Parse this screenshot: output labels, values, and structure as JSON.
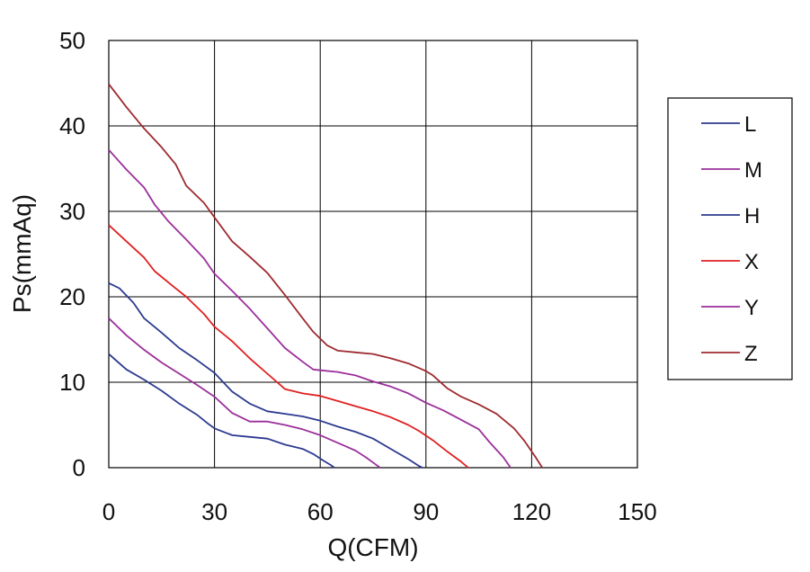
{
  "chart_data": {
    "type": "line",
    "title": "",
    "xlabel": "Q(CFM)",
    "ylabel": "Ps(mmAq)",
    "xlim": [
      0,
      150
    ],
    "ylim": [
      0,
      50
    ],
    "x_ticks": [
      0,
      30,
      60,
      90,
      120,
      150
    ],
    "y_ticks": [
      0,
      10,
      20,
      30,
      40,
      50
    ],
    "grid": true,
    "legend_position": "right",
    "series": [
      {
        "name": "L",
        "color": "#2b3a8f",
        "points": [
          [
            0,
            13.3
          ],
          [
            5,
            11.5
          ],
          [
            10,
            10.3
          ],
          [
            15,
            9
          ],
          [
            20,
            7.5
          ],
          [
            25,
            6.2
          ],
          [
            28,
            5.2
          ],
          [
            30,
            4.6
          ],
          [
            35,
            3.8
          ],
          [
            40,
            3.6
          ],
          [
            45,
            3.4
          ],
          [
            50,
            2.7
          ],
          [
            55,
            2.2
          ],
          [
            58,
            1.6
          ],
          [
            61,
            0.8
          ],
          [
            63,
            0.3
          ],
          [
            64,
            0
          ]
        ]
      },
      {
        "name": "M",
        "color": "#9b2f9b",
        "points": [
          [
            0,
            17.5
          ],
          [
            5,
            15.5
          ],
          [
            10,
            13.8
          ],
          [
            15,
            12.3
          ],
          [
            20,
            11
          ],
          [
            25,
            9.7
          ],
          [
            30,
            8.3
          ],
          [
            35,
            6.4
          ],
          [
            40,
            5.4
          ],
          [
            45,
            5.4
          ],
          [
            50,
            5
          ],
          [
            55,
            4.5
          ],
          [
            60,
            3.8
          ],
          [
            65,
            2.9
          ],
          [
            70,
            2
          ],
          [
            73,
            1.2
          ],
          [
            75,
            0.6
          ],
          [
            77,
            0
          ]
        ]
      },
      {
        "name": "H",
        "color": "#2b3a8f",
        "points": [
          [
            0,
            21.6
          ],
          [
            3,
            21
          ],
          [
            7,
            19.3
          ],
          [
            10,
            17.5
          ],
          [
            15,
            15.8
          ],
          [
            20,
            14
          ],
          [
            25,
            12.6
          ],
          [
            30,
            11.1
          ],
          [
            35,
            8.9
          ],
          [
            40,
            7.5
          ],
          [
            45,
            6.6
          ],
          [
            50,
            6.3
          ],
          [
            55,
            6
          ],
          [
            60,
            5.5
          ],
          [
            65,
            4.8
          ],
          [
            70,
            4.2
          ],
          [
            75,
            3.4
          ],
          [
            80,
            2.2
          ],
          [
            85,
            1
          ],
          [
            88,
            0.2
          ],
          [
            89,
            0
          ]
        ]
      },
      {
        "name": "X",
        "color": "#e02020",
        "points": [
          [
            0,
            28.4
          ],
          [
            5,
            26.5
          ],
          [
            10,
            24.6
          ],
          [
            13,
            23
          ],
          [
            18,
            21.3
          ],
          [
            22,
            20
          ],
          [
            27,
            18
          ],
          [
            30,
            16.5
          ],
          [
            35,
            14.8
          ],
          [
            40,
            12.8
          ],
          [
            45,
            11
          ],
          [
            50,
            9.2
          ],
          [
            55,
            8.7
          ],
          [
            60,
            8.4
          ],
          [
            65,
            7.8
          ],
          [
            70,
            7.2
          ],
          [
            75,
            6.6
          ],
          [
            80,
            5.9
          ],
          [
            85,
            5
          ],
          [
            88,
            4.3
          ],
          [
            92,
            3.2
          ],
          [
            96,
            1.9
          ],
          [
            100,
            0.7
          ],
          [
            102,
            0
          ]
        ]
      },
      {
        "name": "Y",
        "color": "#9b2f9b",
        "points": [
          [
            0,
            37.2
          ],
          [
            5,
            34.9
          ],
          [
            10,
            32.8
          ],
          [
            13,
            30.8
          ],
          [
            17,
            28.8
          ],
          [
            22,
            26.7
          ],
          [
            27,
            24.5
          ],
          [
            30,
            22.7
          ],
          [
            35,
            20.7
          ],
          [
            40,
            18.6
          ],
          [
            45,
            16.3
          ],
          [
            50,
            14
          ],
          [
            55,
            12.4
          ],
          [
            58,
            11.5
          ],
          [
            60,
            11.4
          ],
          [
            65,
            11.2
          ],
          [
            70,
            10.8
          ],
          [
            75,
            10.1
          ],
          [
            80,
            9.5
          ],
          [
            85,
            8.7
          ],
          [
            90,
            7.6
          ],
          [
            95,
            6.7
          ],
          [
            100,
            5.6
          ],
          [
            105,
            4.5
          ],
          [
            108,
            3
          ],
          [
            112,
            1.2
          ],
          [
            114,
            0
          ]
        ]
      },
      {
        "name": "Z",
        "color": "#9e2a2f",
        "points": [
          [
            0,
            44.9
          ],
          [
            5,
            42.2
          ],
          [
            10,
            39.7
          ],
          [
            15,
            37.5
          ],
          [
            19,
            35.5
          ],
          [
            22,
            33
          ],
          [
            27,
            31
          ],
          [
            30,
            29.3
          ],
          [
            35,
            26.5
          ],
          [
            40,
            24.7
          ],
          [
            45,
            22.8
          ],
          [
            50,
            20.2
          ],
          [
            55,
            17.5
          ],
          [
            58,
            15.9
          ],
          [
            62,
            14.3
          ],
          [
            65,
            13.7
          ],
          [
            70,
            13.5
          ],
          [
            75,
            13.3
          ],
          [
            80,
            12.8
          ],
          [
            85,
            12.2
          ],
          [
            90,
            11.3
          ],
          [
            92,
            10.8
          ],
          [
            96,
            9.3
          ],
          [
            100,
            8.3
          ],
          [
            105,
            7.4
          ],
          [
            110,
            6.3
          ],
          [
            115,
            4.6
          ],
          [
            118,
            3.1
          ],
          [
            121,
            1.3
          ],
          [
            123,
            0
          ]
        ]
      }
    ]
  }
}
